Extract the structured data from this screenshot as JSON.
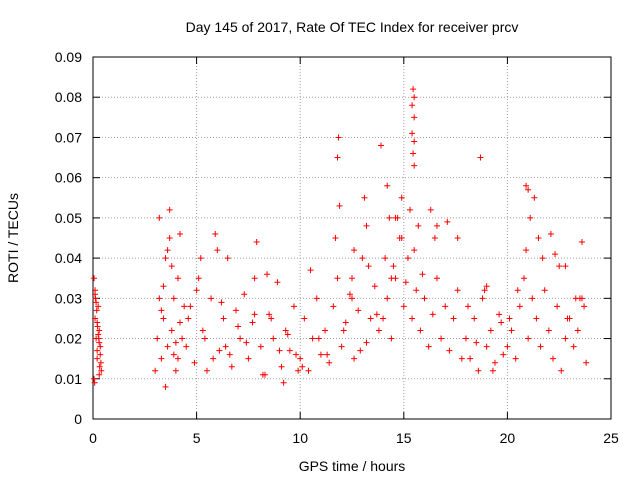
{
  "chart_data": {
    "type": "scatter",
    "title": "Day 145 of 2017, Rate Of TEC Index for receiver prcv",
    "xlabel": "GPS time / hours",
    "ylabel": "ROTI / TECUs",
    "xlim": [
      0,
      25
    ],
    "ylim": [
      0,
      0.09
    ],
    "x_ticks": [
      0,
      5,
      10,
      15,
      20,
      25
    ],
    "x_tick_labels": [
      "0",
      "5",
      "10",
      "15",
      "20",
      "25"
    ],
    "y_ticks": [
      0,
      0.01,
      0.02,
      0.03,
      0.04,
      0.05,
      0.06,
      0.07,
      0.08,
      0.09
    ],
    "y_tick_labels": [
      "0",
      "0.01",
      "0.02",
      "0.03",
      "0.04",
      "0.05",
      "0.06",
      "0.07",
      "0.08",
      "0.09"
    ],
    "grid": true,
    "marker": "+",
    "marker_color": "#ff0000",
    "series": [
      {
        "name": "ROTI",
        "x": [
          0.05,
          0.1,
          0.15,
          0.2,
          0.25,
          0.3,
          0.35,
          0.4,
          0.05,
          0.12,
          0.2,
          0.28,
          0.35,
          0.1,
          0.18,
          0.25,
          0.32,
          0.08,
          0.15,
          0.22,
          0.3,
          0.38,
          0.1,
          0.2,
          0.3,
          3.0,
          3.1,
          3.2,
          3.3,
          3.4,
          3.5,
          3.6,
          3.7,
          3.8,
          3.9,
          4.0,
          4.1,
          4.2,
          4.3,
          4.4,
          3.2,
          3.5,
          3.8,
          4.1,
          3.3,
          3.6,
          3.9,
          4.2,
          3.4,
          3.7,
          4.0,
          4.5,
          4.7,
          4.9,
          5.1,
          5.3,
          5.5,
          5.7,
          5.9,
          6.1,
          6.3,
          6.5,
          6.7,
          6.9,
          7.1,
          7.3,
          7.5,
          7.7,
          7.9,
          8.1,
          8.3,
          8.5,
          8.7,
          8.9,
          9.1,
          9.3,
          9.5,
          9.7,
          9.9,
          4.6,
          5.0,
          5.4,
          5.8,
          6.2,
          6.6,
          7.0,
          7.4,
          7.8,
          8.2,
          8.6,
          9.0,
          9.4,
          9.8,
          5.2,
          6.0,
          6.4,
          7.8,
          8.4,
          9.2,
          10.0,
          10.2,
          10.4,
          10.6,
          10.8,
          11.0,
          11.2,
          11.4,
          11.6,
          11.8,
          12.0,
          12.2,
          12.4,
          12.6,
          12.8,
          13.0,
          13.2,
          13.4,
          13.6,
          13.8,
          10.1,
          10.5,
          10.9,
          11.3,
          11.7,
          12.1,
          12.5,
          12.9,
          13.3,
          13.7,
          11.8,
          11.85,
          11.9,
          12.5,
          12.6,
          13.1,
          13.2,
          13.9,
          14.0,
          14.2,
          14.4,
          14.6,
          14.8,
          15.0,
          15.2,
          15.4,
          15.6,
          15.8,
          16.0,
          16.2,
          16.4,
          16.6,
          16.8,
          17.0,
          17.2,
          17.4,
          17.6,
          17.8,
          14.1,
          14.3,
          14.5,
          14.7,
          14.9,
          15.1,
          15.3,
          15.5,
          15.7,
          15.9,
          14.2,
          14.4,
          14.6,
          14.9,
          15.5,
          15.5,
          15.5,
          15.5,
          15.45,
          15.4,
          15.4,
          15.45,
          16.3,
          16.5,
          16.6,
          17.1,
          17.6,
          18.0,
          18.2,
          18.4,
          18.6,
          18.8,
          19.0,
          19.2,
          19.4,
          19.6,
          19.8,
          18.1,
          18.5,
          18.9,
          19.3,
          19.7,
          18.7,
          19.0,
          20.0,
          20.2,
          20.4,
          20.6,
          20.8,
          21.0,
          21.2,
          21.4,
          21.6,
          21.8,
          22.0,
          22.2,
          22.4,
          22.6,
          22.8,
          23.0,
          23.2,
          23.4,
          23.6,
          23.8,
          20.1,
          20.5,
          20.9,
          21.3,
          21.7,
          22.1,
          22.5,
          22.9,
          23.3,
          23.7,
          20.9,
          21.0,
          21.1,
          21.5,
          22.3,
          22.8,
          23.5,
          23.6
        ],
        "y": [
          0.035,
          0.025,
          0.02,
          0.015,
          0.028,
          0.022,
          0.018,
          0.012,
          0.01,
          0.03,
          0.024,
          0.02,
          0.016,
          0.032,
          0.027,
          0.021,
          0.013,
          0.009,
          0.029,
          0.023,
          0.019,
          0.014,
          0.031,
          0.017,
          0.011,
          0.012,
          0.02,
          0.03,
          0.015,
          0.025,
          0.04,
          0.018,
          0.045,
          0.022,
          0.03,
          0.012,
          0.035,
          0.046,
          0.02,
          0.028,
          0.05,
          0.008,
          0.038,
          0.015,
          0.027,
          0.042,
          0.016,
          0.024,
          0.033,
          0.052,
          0.019,
          0.018,
          0.028,
          0.014,
          0.035,
          0.022,
          0.012,
          0.03,
          0.046,
          0.017,
          0.025,
          0.04,
          0.013,
          0.027,
          0.02,
          0.031,
          0.015,
          0.024,
          0.044,
          0.018,
          0.011,
          0.026,
          0.02,
          0.034,
          0.013,
          0.022,
          0.017,
          0.028,
          0.012,
          0.025,
          0.032,
          0.02,
          0.015,
          0.029,
          0.016,
          0.023,
          0.019,
          0.035,
          0.011,
          0.025,
          0.017,
          0.021,
          0.016,
          0.04,
          0.042,
          0.018,
          0.026,
          0.036,
          0.009,
          0.015,
          0.025,
          0.012,
          0.02,
          0.03,
          0.016,
          0.022,
          0.014,
          0.028,
          0.035,
          0.018,
          0.024,
          0.031,
          0.015,
          0.027,
          0.04,
          0.019,
          0.025,
          0.033,
          0.022,
          0.013,
          0.037,
          0.02,
          0.016,
          0.045,
          0.022,
          0.03,
          0.017,
          0.038,
          0.026,
          0.065,
          0.07,
          0.053,
          0.035,
          0.042,
          0.055,
          0.048,
          0.068,
          0.025,
          0.03,
          0.02,
          0.035,
          0.045,
          0.028,
          0.04,
          0.025,
          0.032,
          0.022,
          0.03,
          0.018,
          0.026,
          0.035,
          0.02,
          0.028,
          0.017,
          0.025,
          0.032,
          0.015,
          0.04,
          0.05,
          0.038,
          0.05,
          0.045,
          0.034,
          0.052,
          0.042,
          0.048,
          0.036,
          0.058,
          0.035,
          0.05,
          0.055,
          0.063,
          0.069,
          0.075,
          0.08,
          0.082,
          0.078,
          0.071,
          0.066,
          0.052,
          0.045,
          0.048,
          0.049,
          0.045,
          0.02,
          0.015,
          0.025,
          0.012,
          0.03,
          0.018,
          0.022,
          0.014,
          0.026,
          0.016,
          0.028,
          0.019,
          0.032,
          0.012,
          0.024,
          0.065,
          0.033,
          0.018,
          0.022,
          0.015,
          0.028,
          0.035,
          0.02,
          0.03,
          0.025,
          0.018,
          0.032,
          0.022,
          0.015,
          0.028,
          0.012,
          0.02,
          0.025,
          0.018,
          0.022,
          0.03,
          0.014,
          0.025,
          0.032,
          0.042,
          0.055,
          0.04,
          0.046,
          0.038,
          0.025,
          0.03,
          0.028,
          0.058,
          0.057,
          0.05,
          0.045,
          0.041,
          0.038,
          0.03,
          0.044
        ]
      }
    ]
  }
}
